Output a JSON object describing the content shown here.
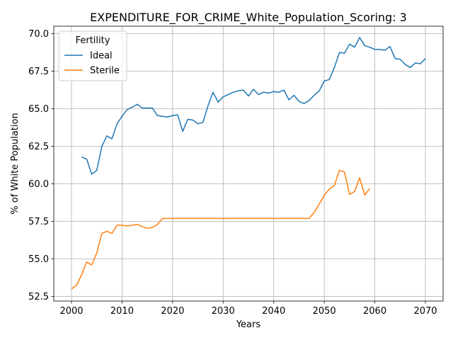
{
  "chart_data": {
    "type": "line",
    "title": "EXPENDITURE_FOR_CRIME_White_Population_Scoring: 3",
    "xlabel": "Years",
    "ylabel": "% of White Population",
    "xlim": [
      1996.5,
      2073.5
    ],
    "ylim": [
      52.2,
      70.5
    ],
    "xticks": [
      2000,
      2010,
      2020,
      2030,
      2040,
      2050,
      2060,
      2070
    ],
    "yticks": [
      52.5,
      55.0,
      57.5,
      60.0,
      62.5,
      65.0,
      67.5,
      70.0
    ],
    "xtick_labels": [
      "2000",
      "2010",
      "2020",
      "2030",
      "2040",
      "2050",
      "2060",
      "2070"
    ],
    "ytick_labels": [
      "52.5",
      "55.0",
      "57.5",
      "60.0",
      "62.5",
      "65.0",
      "67.5",
      "70.0"
    ],
    "grid": true,
    "legend": {
      "title": "Fertility",
      "position": "top-left"
    },
    "series": [
      {
        "name": "Ideal",
        "color": "#1f77b4",
        "x": [
          2002,
          2003,
          2004,
          2005,
          2006,
          2007,
          2008,
          2009,
          2010,
          2011,
          2012,
          2013,
          2014,
          2015,
          2016,
          2017,
          2018,
          2019,
          2020,
          2021,
          2022,
          2023,
          2024,
          2025,
          2026,
          2027,
          2028,
          2029,
          2030,
          2031,
          2032,
          2033,
          2034,
          2035,
          2036,
          2037,
          2038,
          2039,
          2040,
          2041,
          2042,
          2043,
          2044,
          2045,
          2046,
          2047,
          2048,
          2049,
          2050,
          2051,
          2052,
          2053,
          2054,
          2055,
          2056,
          2057,
          2058,
          2059,
          2060,
          2061,
          2062,
          2063,
          2064,
          2065,
          2066,
          2067,
          2068,
          2069,
          2070
        ],
        "values": [
          61.8,
          61.65,
          60.65,
          60.9,
          62.5,
          63.2,
          63.0,
          64.0,
          64.5,
          64.95,
          65.1,
          65.3,
          65.05,
          65.05,
          65.05,
          64.55,
          64.5,
          64.45,
          64.55,
          64.6,
          63.5,
          64.3,
          64.25,
          64.0,
          64.1,
          65.2,
          66.1,
          65.45,
          65.8,
          65.95,
          66.1,
          66.2,
          66.25,
          65.85,
          66.3,
          65.95,
          66.1,
          66.05,
          66.15,
          66.1,
          66.25,
          65.6,
          65.9,
          65.5,
          65.35,
          65.55,
          65.9,
          66.2,
          66.85,
          66.95,
          67.75,
          68.75,
          68.7,
          69.3,
          69.1,
          69.75,
          69.2,
          69.1,
          68.95,
          68.95,
          68.9,
          69.15,
          68.35,
          68.3,
          67.95,
          67.75,
          68.05,
          68.0,
          68.35
        ]
      },
      {
        "name": "Sterile",
        "color": "#ff7f0e",
        "x": [
          2000,
          2001,
          2002,
          2003,
          2004,
          2005,
          2006,
          2007,
          2008,
          2009,
          2010,
          2011,
          2012,
          2013,
          2014,
          2015,
          2016,
          2017,
          2018,
          2019,
          2020,
          2021,
          2022,
          2023,
          2024,
          2025,
          2026,
          2027,
          2028,
          2029,
          2030,
          2031,
          2032,
          2033,
          2034,
          2035,
          2036,
          2037,
          2038,
          2039,
          2040,
          2041,
          2042,
          2043,
          2044,
          2045,
          2046,
          2047,
          2048,
          2049,
          2050,
          2051,
          2052,
          2053,
          2054,
          2055,
          2056,
          2057,
          2058,
          2059
        ],
        "values": [
          53.0,
          53.25,
          53.95,
          54.8,
          54.6,
          55.4,
          56.7,
          56.85,
          56.7,
          57.25,
          57.25,
          57.2,
          57.25,
          57.3,
          57.15,
          57.05,
          57.1,
          57.3,
          57.7,
          57.7,
          57.7,
          57.7,
          57.7,
          57.7,
          57.7,
          57.7,
          57.7,
          57.7,
          57.7,
          57.7,
          57.7,
          57.7,
          57.7,
          57.7,
          57.7,
          57.7,
          57.7,
          57.7,
          57.7,
          57.7,
          57.7,
          57.7,
          57.7,
          57.7,
          57.7,
          57.7,
          57.7,
          57.7,
          58.1,
          58.65,
          59.25,
          59.65,
          59.9,
          60.9,
          60.8,
          59.3,
          59.5,
          60.4,
          59.25,
          59.7
        ]
      }
    ]
  }
}
